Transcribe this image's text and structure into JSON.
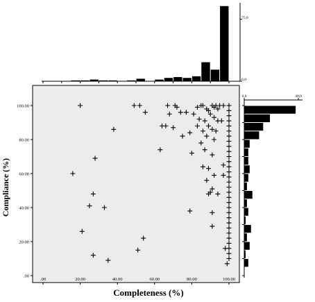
{
  "chart_data": [
    {
      "type": "scatter",
      "marker": "+",
      "xlabel": "Completeness (%)",
      "ylabel": "Compliance  (%)",
      "xlim": [
        0,
        105
      ],
      "ylim": [
        0,
        105
      ],
      "xticks": [
        ".00",
        "20.00",
        "40.00",
        "60.00",
        "80.00",
        "100.00"
      ],
      "yticks": [
        ".00",
        "20.00",
        "40.00",
        "60.00",
        "80.00",
        "100.00"
      ],
      "grid": false,
      "background": "#ececec",
      "points": [
        {
          "x": 20,
          "y": 100
        },
        {
          "x": 49,
          "y": 100
        },
        {
          "x": 52,
          "y": 100
        },
        {
          "x": 55,
          "y": 96
        },
        {
          "x": 38,
          "y": 86
        },
        {
          "x": 67,
          "y": 100
        },
        {
          "x": 71,
          "y": 100
        },
        {
          "x": 72,
          "y": 99
        },
        {
          "x": 74,
          "y": 96
        },
        {
          "x": 77,
          "y": 96
        },
        {
          "x": 68,
          "y": 95
        },
        {
          "x": 66,
          "y": 88
        },
        {
          "x": 64,
          "y": 88
        },
        {
          "x": 70,
          "y": 87
        },
        {
          "x": 75,
          "y": 82
        },
        {
          "x": 63,
          "y": 74
        },
        {
          "x": 83,
          "y": 99
        },
        {
          "x": 85,
          "y": 100
        },
        {
          "x": 86,
          "y": 100
        },
        {
          "x": 88,
          "y": 98
        },
        {
          "x": 89,
          "y": 97
        },
        {
          "x": 91,
          "y": 100
        },
        {
          "x": 92,
          "y": 99
        },
        {
          "x": 93,
          "y": 100
        },
        {
          "x": 94,
          "y": 98
        },
        {
          "x": 95,
          "y": 100
        },
        {
          "x": 97,
          "y": 100
        },
        {
          "x": 81,
          "y": 95
        },
        {
          "x": 87,
          "y": 91
        },
        {
          "x": 84,
          "y": 92
        },
        {
          "x": 90,
          "y": 95
        },
        {
          "x": 92,
          "y": 93
        },
        {
          "x": 94,
          "y": 91
        },
        {
          "x": 96,
          "y": 91
        },
        {
          "x": 83,
          "y": 88
        },
        {
          "x": 86,
          "y": 85
        },
        {
          "x": 89,
          "y": 88
        },
        {
          "x": 91,
          "y": 86
        },
        {
          "x": 93,
          "y": 85
        },
        {
          "x": 85,
          "y": 78
        },
        {
          "x": 88,
          "y": 82
        },
        {
          "x": 92,
          "y": 80
        },
        {
          "x": 79,
          "y": 84
        },
        {
          "x": 80,
          "y": 72
        },
        {
          "x": 87,
          "y": 74
        },
        {
          "x": 91,
          "y": 71
        },
        {
          "x": 86,
          "y": 64
        },
        {
          "x": 89,
          "y": 63
        },
        {
          "x": 92,
          "y": 59
        },
        {
          "x": 88,
          "y": 56
        },
        {
          "x": 91,
          "y": 51
        },
        {
          "x": 90,
          "y": 49
        },
        {
          "x": 89,
          "y": 48
        },
        {
          "x": 94,
          "y": 48
        },
        {
          "x": 91,
          "y": 37
        },
        {
          "x": 79,
          "y": 38
        },
        {
          "x": 91,
          "y": 29
        },
        {
          "x": 28,
          "y": 69
        },
        {
          "x": 16,
          "y": 60
        },
        {
          "x": 27,
          "y": 48
        },
        {
          "x": 25,
          "y": 41
        },
        {
          "x": 33,
          "y": 40
        },
        {
          "x": 21,
          "y": 26
        },
        {
          "x": 54,
          "y": 22
        },
        {
          "x": 51,
          "y": 15
        },
        {
          "x": 27,
          "y": 12
        },
        {
          "x": 35,
          "y": 9
        },
        {
          "x": 97,
          "y": 65
        },
        {
          "x": 97,
          "y": 59
        },
        {
          "x": 98,
          "y": 16
        },
        {
          "x": 99,
          "y": 7
        },
        {
          "x": 100,
          "y": 100
        },
        {
          "x": 100,
          "y": 97
        },
        {
          "x": 100,
          "y": 94
        },
        {
          "x": 100,
          "y": 91
        },
        {
          "x": 100,
          "y": 88
        },
        {
          "x": 100,
          "y": 85
        },
        {
          "x": 100,
          "y": 82
        },
        {
          "x": 100,
          "y": 79
        },
        {
          "x": 100,
          "y": 76
        },
        {
          "x": 100,
          "y": 73
        },
        {
          "x": 100,
          "y": 70
        },
        {
          "x": 100,
          "y": 67
        },
        {
          "x": 100,
          "y": 64
        },
        {
          "x": 100,
          "y": 61
        },
        {
          "x": 100,
          "y": 58
        },
        {
          "x": 100,
          "y": 55
        },
        {
          "x": 100,
          "y": 52
        },
        {
          "x": 100,
          "y": 49
        },
        {
          "x": 100,
          "y": 46
        },
        {
          "x": 100,
          "y": 43
        },
        {
          "x": 100,
          "y": 40
        },
        {
          "x": 100,
          "y": 37
        },
        {
          "x": 100,
          "y": 34
        },
        {
          "x": 100,
          "y": 31
        },
        {
          "x": 100,
          "y": 28
        },
        {
          "x": 100,
          "y": 25
        },
        {
          "x": 100,
          "y": 22
        },
        {
          "x": 100,
          "y": 19
        },
        {
          "x": 100,
          "y": 16
        },
        {
          "x": 100,
          "y": 13
        },
        {
          "x": 100,
          "y": 10
        }
      ]
    },
    {
      "type": "bar",
      "orientation": "vertical",
      "role": "marginal histogram of completeness",
      "yticks": [
        "0,0",
        "75,0"
      ],
      "ylim": [
        0,
        95
      ],
      "bins": [
        {
          "x0": 15,
          "x1": 20,
          "count": 1
        },
        {
          "x0": 20,
          "x1": 25,
          "count": 1
        },
        {
          "x0": 25,
          "x1": 30,
          "count": 2
        },
        {
          "x0": 30,
          "x1": 35,
          "count": 1
        },
        {
          "x0": 35,
          "x1": 40,
          "count": 1
        },
        {
          "x0": 45,
          "x1": 50,
          "count": 1
        },
        {
          "x0": 50,
          "x1": 55,
          "count": 3
        },
        {
          "x0": 60,
          "x1": 65,
          "count": 2
        },
        {
          "x0": 65,
          "x1": 70,
          "count": 4
        },
        {
          "x0": 70,
          "x1": 75,
          "count": 5
        },
        {
          "x0": 75,
          "x1": 80,
          "count": 4
        },
        {
          "x0": 80,
          "x1": 85,
          "count": 6
        },
        {
          "x0": 85,
          "x1": 90,
          "count": 23
        },
        {
          "x0": 90,
          "x1": 95,
          "count": 14
        },
        {
          "x0": 95,
          "x1": 100,
          "count": 91
        }
      ]
    },
    {
      "type": "bar",
      "orientation": "horizontal",
      "role": "marginal histogram of compliance",
      "xticks": [
        "0,0",
        "40,0"
      ],
      "xlim": [
        0,
        40
      ],
      "bins": [
        {
          "y0": 95,
          "y1": 100,
          "count": 38
        },
        {
          "y0": 90,
          "y1": 95,
          "count": 19
        },
        {
          "y0": 85,
          "y1": 90,
          "count": 14
        },
        {
          "y0": 80,
          "y1": 85,
          "count": 11
        },
        {
          "y0": 75,
          "y1": 80,
          "count": 4
        },
        {
          "y0": 70,
          "y1": 75,
          "count": 3
        },
        {
          "y0": 65,
          "y1": 70,
          "count": 3
        },
        {
          "y0": 60,
          "y1": 65,
          "count": 4
        },
        {
          "y0": 55,
          "y1": 60,
          "count": 3
        },
        {
          "y0": 50,
          "y1": 55,
          "count": 2
        },
        {
          "y0": 45,
          "y1": 50,
          "count": 6
        },
        {
          "y0": 40,
          "y1": 45,
          "count": 2
        },
        {
          "y0": 35,
          "y1": 40,
          "count": 3
        },
        {
          "y0": 30,
          "y1": 35,
          "count": 1
        },
        {
          "y0": 25,
          "y1": 30,
          "count": 5
        },
        {
          "y0": 20,
          "y1": 25,
          "count": 2
        },
        {
          "y0": 15,
          "y1": 20,
          "count": 4
        },
        {
          "y0": 10,
          "y1": 15,
          "count": 1
        },
        {
          "y0": 5,
          "y1": 10,
          "count": 3
        }
      ]
    }
  ]
}
